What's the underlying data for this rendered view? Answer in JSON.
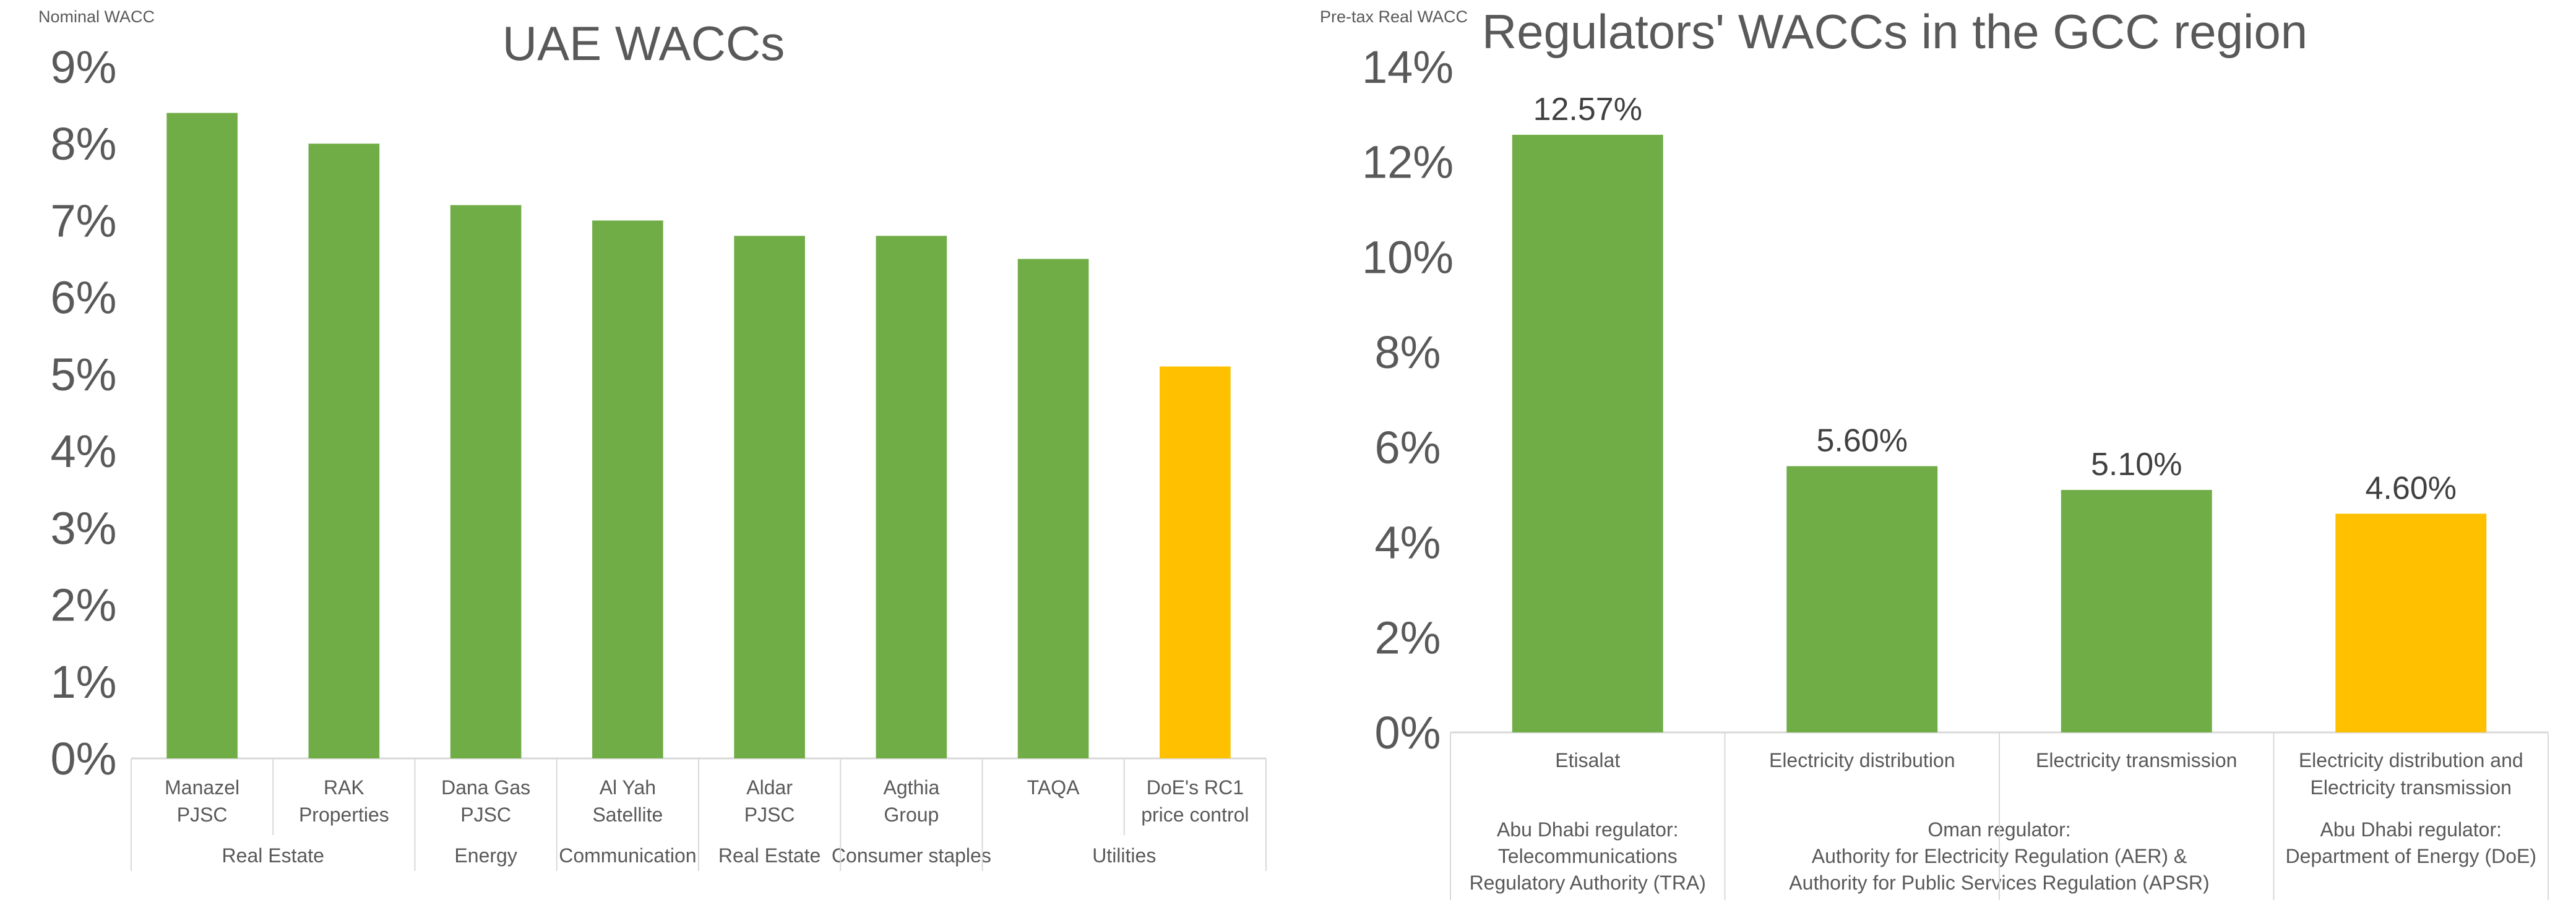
{
  "chart_data": [
    {
      "type": "bar",
      "title": "UAE WACCs",
      "ylabel": "Nominal WACC",
      "ylim": [
        0,
        9
      ],
      "yticks": [
        "0%",
        "1%",
        "2%",
        "3%",
        "4%",
        "5%",
        "6%",
        "7%",
        "8%",
        "9%"
      ],
      "grid": false,
      "categories": [
        [
          "Manazel",
          "PJSC"
        ],
        [
          "RAK",
          "Properties"
        ],
        [
          "Dana Gas",
          "PJSC"
        ],
        [
          "Al Yah",
          "Satellite"
        ],
        [
          "Aldar",
          "PJSC"
        ],
        [
          "Agthia",
          "Group"
        ],
        [
          "TAQA"
        ],
        [
          "DoE's RC1",
          "price control"
        ]
      ],
      "groups": [
        {
          "label": "Real Estate",
          "span": 2
        },
        {
          "label": "Energy",
          "span": 1
        },
        {
          "label": "Communication",
          "span": 1
        },
        {
          "label": "Real Estate",
          "span": 1
        },
        {
          "label": "Consumer staples",
          "span": 1
        },
        {
          "label": "Utilities",
          "span": 2
        }
      ],
      "values": [
        8.4,
        8.0,
        7.2,
        7.0,
        6.8,
        6.8,
        6.5,
        5.1
      ],
      "colors": [
        "#70ad47",
        "#70ad47",
        "#70ad47",
        "#70ad47",
        "#70ad47",
        "#70ad47",
        "#70ad47",
        "#ffc000"
      ]
    },
    {
      "type": "bar",
      "title": "Regulators' WACCs in the GCC region",
      "ylabel": "Pre-tax Real WACC",
      "ylim": [
        0,
        14
      ],
      "yticks": [
        "0%",
        "2%",
        "4%",
        "6%",
        "8%",
        "10%",
        "12%",
        "14%"
      ],
      "grid": false,
      "categories": [
        [
          "Etisalat"
        ],
        [
          "Electricity distribution"
        ],
        [
          "Electricity transmission"
        ],
        [
          "Electricity distribution and",
          "Electricity transmission"
        ]
      ],
      "groups": [
        {
          "label": [
            "Abu Dhabi regulator:",
            "Telecommunications",
            "Regulatory Authority (TRA)"
          ],
          "span": 1
        },
        {
          "label": [
            "Oman regulator:",
            "Authority for Electricity Regulation (AER) &",
            "Authority for Public Services Regulation (APSR)"
          ],
          "span": 2
        },
        {
          "label": [
            "Abu Dhabi regulator:",
            "Department of Energy (DoE)"
          ],
          "span": 1
        }
      ],
      "values": [
        12.57,
        5.6,
        5.1,
        4.6
      ],
      "data_labels": [
        "12.57%",
        "5.60%",
        "5.10%",
        "4.60%"
      ],
      "colors": [
        "#70ad47",
        "#70ad47",
        "#70ad47",
        "#ffc000"
      ]
    }
  ]
}
